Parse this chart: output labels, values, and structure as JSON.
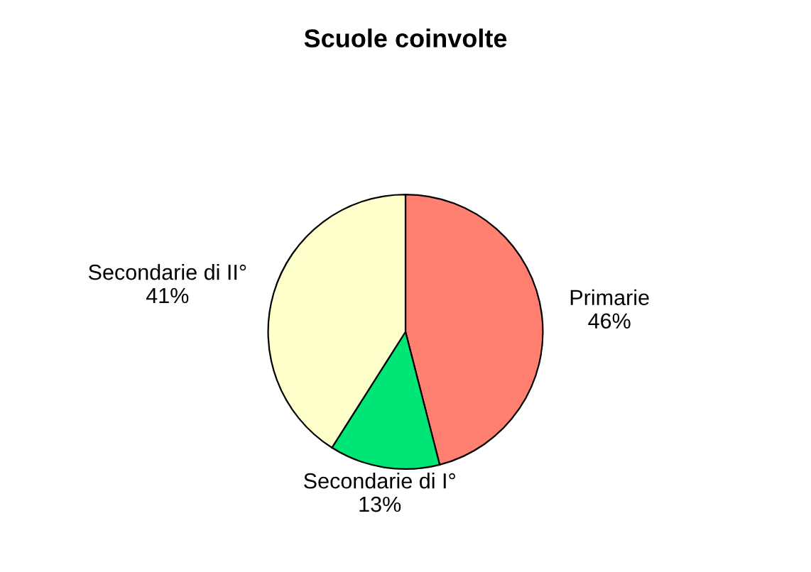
{
  "chart_data": {
    "type": "pie",
    "title": "Scuole coinvolte",
    "categories": [
      "Primarie",
      "Secondarie di I°",
      "Secondarie di II°"
    ],
    "values": [
      46,
      13,
      41
    ],
    "value_labels": [
      "46%",
      "13%",
      "41%"
    ],
    "colors": [
      "#ff8070",
      "#00e676",
      "#ffffcc"
    ]
  }
}
